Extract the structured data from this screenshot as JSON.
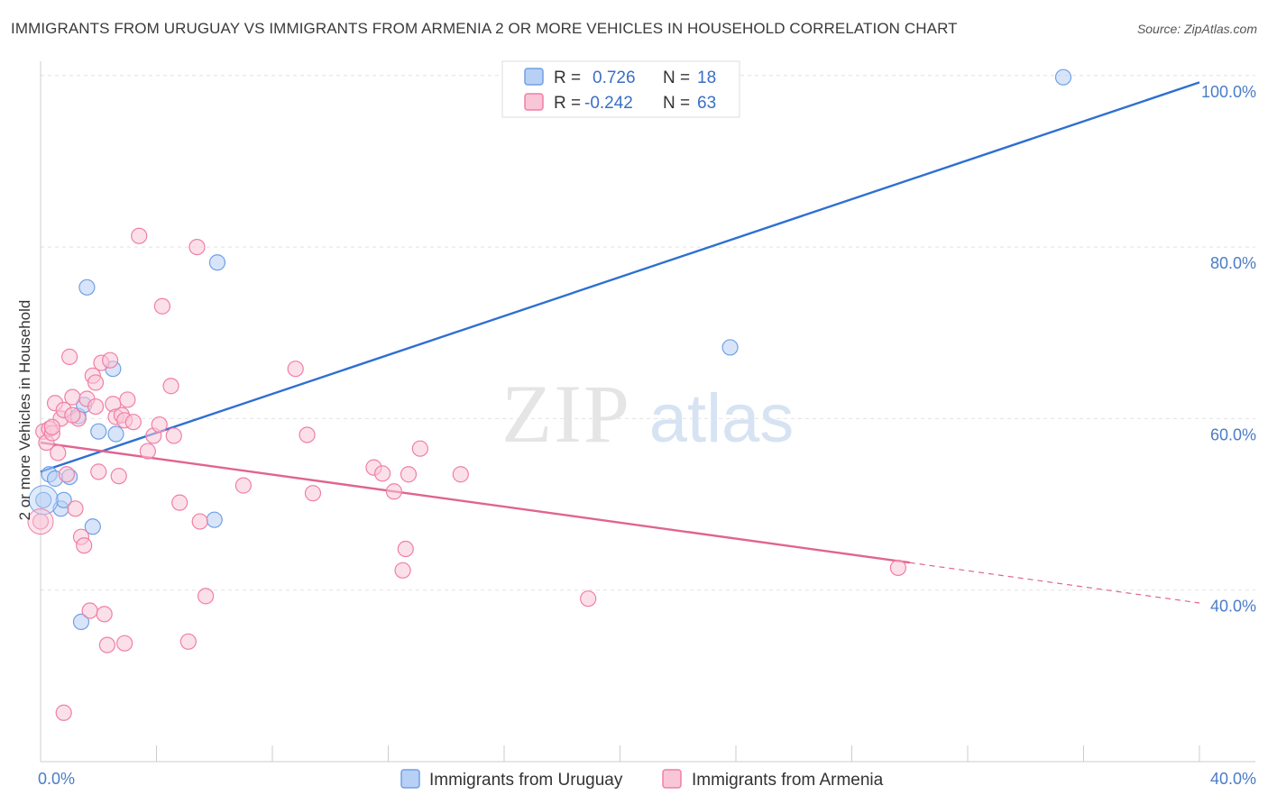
{
  "title": "IMMIGRANTS FROM URUGUAY VS IMMIGRANTS FROM ARMENIA 2 OR MORE VEHICLES IN HOUSEHOLD CORRELATION CHART",
  "source": "Source: ZipAtlas.com",
  "watermark": {
    "zip": "ZIP",
    "atlas": "atlas"
  },
  "chart_data": {
    "type": "scatter",
    "ylabel": "2 or more Vehicles in Household",
    "xlim": [
      0,
      40
    ],
    "ylim": [
      20,
      102.5
    ],
    "x_tick_labels": [
      {
        "value": 0,
        "label": "0.0%"
      },
      {
        "value": 40,
        "label": "40.0%"
      }
    ],
    "y_tick_labels": [
      {
        "value": 40,
        "label": "40.0%"
      },
      {
        "value": 60,
        "label": "60.0%"
      },
      {
        "value": 80,
        "label": "80.0%"
      },
      {
        "value": 100,
        "label": "100.0%"
      }
    ],
    "x_minor_ticks": [
      0,
      4,
      8,
      12,
      16,
      20,
      24,
      28,
      32,
      36,
      40
    ],
    "legend": [
      {
        "r_label": "R =",
        "r_value": "0.726",
        "n_label": "N =",
        "n_value": "18",
        "color": "#6fa0e8"
      },
      {
        "r_label": "R =",
        "r_value": "-0.242",
        "n_label": "N =",
        "n_value": "63",
        "color": "#f07fa6"
      }
    ],
    "series": [
      {
        "name": "Immigrants from Uruguay",
        "color": "#6fa0e8",
        "fill": "#b8d0f4",
        "line_color": "#2f6fd1",
        "trend": {
          "x0": 0,
          "y0": 53.8,
          "x1": 40,
          "y1": 99.2
        },
        "points": [
          [
            0.1,
            50.5
          ],
          [
            0.3,
            53.5
          ],
          [
            0.5,
            53.0
          ],
          [
            0.7,
            49.5
          ],
          [
            0.8,
            50.5
          ],
          [
            1.0,
            53.2
          ],
          [
            1.3,
            60.3
          ],
          [
            1.5,
            61.6
          ],
          [
            1.6,
            75.3
          ],
          [
            1.8,
            47.4
          ],
          [
            2.0,
            58.5
          ],
          [
            2.5,
            65.8
          ],
          [
            2.6,
            58.2
          ],
          [
            1.4,
            36.3
          ],
          [
            6.0,
            48.2
          ],
          [
            6.1,
            78.2
          ],
          [
            23.8,
            68.3
          ],
          [
            35.3,
            99.8
          ]
        ]
      },
      {
        "name": "Immigrants from Armenia",
        "color": "#f07fa6",
        "fill": "#f9c6d7",
        "line_color": "#e0648f",
        "trend": {
          "x0": 0,
          "y0": 57.2,
          "x1": 30,
          "y1": 43.2
        },
        "trend_ext": {
          "x0": 30,
          "y0": 43.2,
          "x1": 40,
          "y1": 38.5
        },
        "points": [
          [
            0.0,
            48.0
          ],
          [
            0.1,
            58.5
          ],
          [
            0.2,
            57.2
          ],
          [
            0.3,
            58.8
          ],
          [
            0.4,
            58.3
          ],
          [
            0.5,
            61.8
          ],
          [
            0.6,
            56.0
          ],
          [
            0.7,
            60.0
          ],
          [
            0.8,
            61.0
          ],
          [
            0.9,
            53.5
          ],
          [
            1.0,
            67.2
          ],
          [
            1.1,
            62.5
          ],
          [
            1.2,
            49.5
          ],
          [
            1.3,
            60.0
          ],
          [
            1.4,
            46.2
          ],
          [
            1.5,
            45.2
          ],
          [
            1.6,
            62.3
          ],
          [
            1.7,
            37.6
          ],
          [
            1.8,
            65.0
          ],
          [
            1.9,
            64.2
          ],
          [
            2.0,
            53.8
          ],
          [
            2.1,
            66.5
          ],
          [
            2.2,
            37.2
          ],
          [
            2.3,
            33.6
          ],
          [
            2.4,
            66.8
          ],
          [
            2.5,
            61.7
          ],
          [
            2.6,
            60.2
          ],
          [
            2.7,
            53.3
          ],
          [
            2.8,
            60.4
          ],
          [
            2.9,
            59.8
          ],
          [
            3.0,
            62.2
          ],
          [
            3.4,
            81.3
          ],
          [
            3.7,
            56.2
          ],
          [
            3.9,
            58.0
          ],
          [
            4.1,
            59.3
          ],
          [
            4.2,
            73.1
          ],
          [
            4.5,
            63.8
          ],
          [
            4.6,
            58.0
          ],
          [
            4.8,
            50.2
          ],
          [
            5.1,
            34.0
          ],
          [
            5.4,
            80.0
          ],
          [
            5.5,
            48.0
          ],
          [
            5.7,
            39.3
          ],
          [
            7.0,
            52.2
          ],
          [
            8.8,
            65.8
          ],
          [
            9.2,
            58.1
          ],
          [
            9.4,
            51.3
          ],
          [
            11.5,
            54.3
          ],
          [
            11.8,
            53.6
          ],
          [
            12.2,
            51.5
          ],
          [
            12.5,
            42.3
          ],
          [
            12.6,
            44.8
          ],
          [
            12.7,
            53.5
          ],
          [
            13.1,
            56.5
          ],
          [
            14.5,
            53.5
          ],
          [
            18.9,
            39.0
          ],
          [
            29.6,
            42.6
          ],
          [
            0.8,
            25.7
          ],
          [
            1.1,
            60.4
          ],
          [
            2.9,
            33.8
          ],
          [
            3.2,
            59.6
          ],
          [
            0.4,
            59.0
          ],
          [
            1.9,
            61.4
          ]
        ]
      }
    ]
  }
}
